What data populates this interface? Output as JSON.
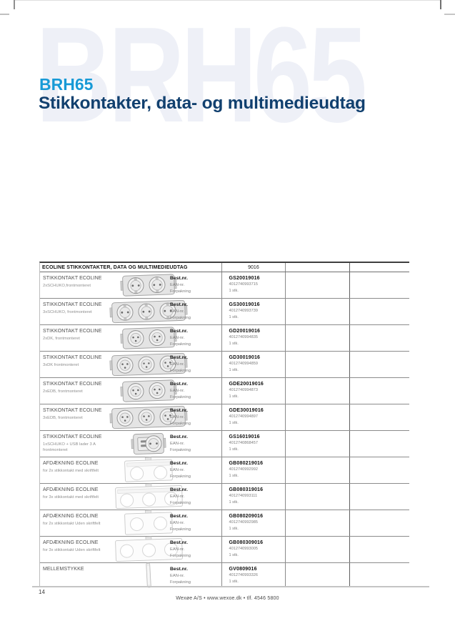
{
  "page": {
    "watermark": "BRH65",
    "series": "BRH65",
    "title": "Stikkontakter, data- og multimedieudtag",
    "number": "14",
    "footer": "Wexøe A/S • www.wexoe.dk • tlf. 4546 5800"
  },
  "colors": {
    "accent_blue": "#189ad6",
    "title_navy": "#11406f",
    "watermark_blue": "#eef0f7"
  },
  "table": {
    "header": {
      "title": "ECOLINE STIKKONTAKTER, DATA OG MULTIMEDIEUDTAG",
      "color_code": "9016"
    },
    "labels": {
      "best_nr": "Best.nr.",
      "ean_nr": "EAN-nr.",
      "forpakning": "Forpakning"
    },
    "rows": [
      {
        "name": "STIKKONTAKT ECOLINE",
        "desc": "2xSCHUKO,frontmonteret",
        "best_nr": "GS20019016",
        "ean": "4012740993715",
        "pack": "1 stk.",
        "image": {
          "kind": "socket-schuko",
          "count": 2
        }
      },
      {
        "name": "STIKKONTAKT ECOLINE",
        "desc": "3xSCHUKO, frontmonteret",
        "best_nr": "GS30019016",
        "ean": "4012740993739",
        "pack": "1 stk.",
        "image": {
          "kind": "socket-schuko",
          "count": 3
        }
      },
      {
        "name": "STIKKONTAKT ECOLINE",
        "desc": "2xDK, frontmonteret",
        "best_nr": "GD20019016",
        "ean": "4012740994835",
        "pack": "1 stk.",
        "image": {
          "kind": "socket-dk",
          "count": 2
        }
      },
      {
        "name": "STIKKONTAKT ECOLINE",
        "desc": "3xDK frontmonteret",
        "best_nr": "GD30019016",
        "ean": "4012740994859",
        "pack": "1 stk.",
        "image": {
          "kind": "socket-dk",
          "count": 3
        }
      },
      {
        "name": "STIKKONTAKT ECOLINE",
        "desc": "2xEDB, frontmonteret",
        "best_nr": "GDE20019016",
        "ean": "4012740994873",
        "pack": "1 stk.",
        "image": {
          "kind": "socket-dk",
          "count": 2
        }
      },
      {
        "name": "STIKKONTAKT ECOLINE",
        "desc": "3xEDB, frontmonteret",
        "best_nr": "GDE30019016",
        "ean": "4012740994897",
        "pack": "1 stk.",
        "image": {
          "kind": "socket-dk",
          "count": 3
        }
      },
      {
        "name": "STIKKONTAKT ECOLINE",
        "desc": "1xSCHUKO + USB lader 3 A frontmonteret",
        "best_nr": "GS16019016",
        "ean": "4012740868457",
        "pack": "1 stk.",
        "image": {
          "kind": "socket-usb",
          "count": 1
        }
      },
      {
        "name": "AFDÆKNING ECOLINE",
        "desc": "for 2x stikkontakt med skriftfelt",
        "best_nr": "GB080219016",
        "ean": "4012740992992",
        "pack": "1 stk.",
        "image": {
          "kind": "frame",
          "count": 2,
          "label_field": true
        }
      },
      {
        "name": "AFDÆKNING ECOLINE",
        "desc": "for 3x stikkontakt med skriftfelt",
        "best_nr": "GB080319016",
        "ean": "4012740993111",
        "pack": "1 stk.",
        "image": {
          "kind": "frame",
          "count": 3,
          "label_field": true
        }
      },
      {
        "name": "AFDÆKNING ECOLINE",
        "desc": "for 2x stikkontakt Uden skriftfelt",
        "best_nr": "GB080209016",
        "ean": "4012740992985",
        "pack": "1 stk.",
        "image": {
          "kind": "frame",
          "count": 2,
          "label_field": false
        }
      },
      {
        "name": "AFDÆKNING ECOLINE",
        "desc": "for 3x stikkontakt Uden skriftfelt",
        "best_nr": "GB080309016",
        "ean": "4012740993005",
        "pack": "1 stk.",
        "image": {
          "kind": "frame",
          "count": 3,
          "label_field": false
        }
      },
      {
        "name": "MELLEMSTYKKE",
        "desc": "",
        "best_nr": "GV0809016",
        "ean": "4012740993326",
        "pack": "1 stk.",
        "image": {
          "kind": "spacer",
          "count": 1
        }
      }
    ]
  }
}
